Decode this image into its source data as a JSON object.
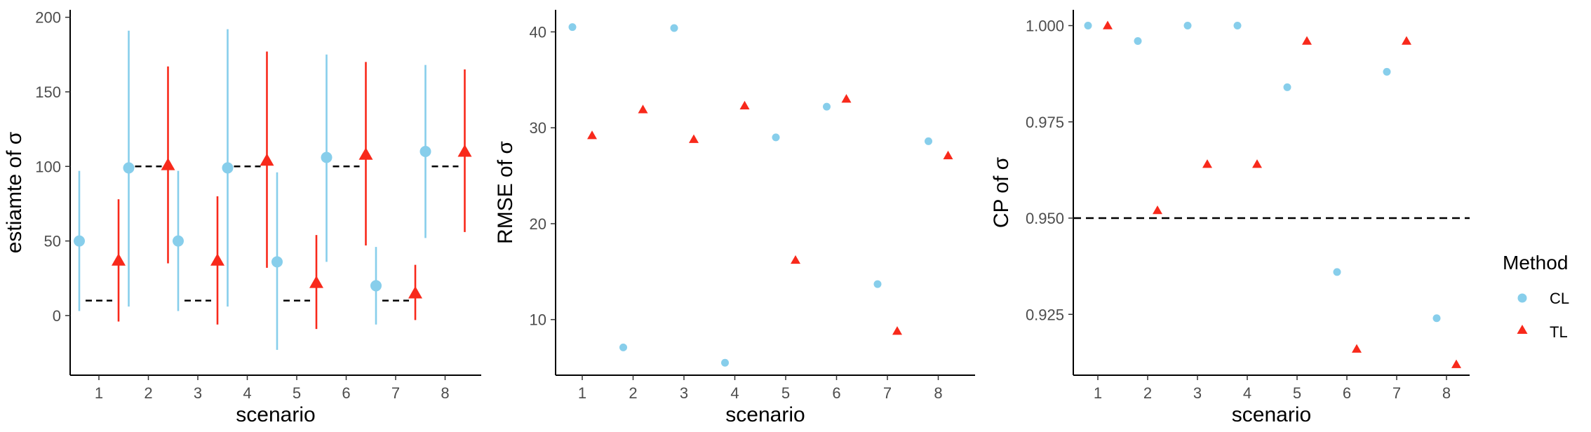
{
  "chart_data": [
    {
      "type": "scatter",
      "variant": "point-range",
      "xlabel": "scenario",
      "ylabel": "estiamte of σ",
      "categories": [
        "1",
        "2",
        "3",
        "4",
        "5",
        "6",
        "7",
        "8"
      ],
      "ylim": [
        -40,
        205
      ],
      "yticks": [
        0,
        50,
        100,
        150,
        200
      ],
      "grid": false,
      "series": [
        {
          "name": "CL",
          "color": "#87CEEB",
          "marker": "circle",
          "values": [
            50,
            99,
            50,
            99,
            36,
            106,
            20,
            110
          ],
          "lower": [
            3,
            6,
            3,
            6,
            -23,
            36,
            -6,
            52
          ],
          "upper": [
            97,
            191,
            97,
            192,
            96,
            175,
            46,
            168
          ]
        },
        {
          "name": "TL",
          "color": "#F8291B",
          "marker": "triangle",
          "values": [
            37,
            101,
            37,
            104,
            22,
            108,
            15,
            110
          ],
          "lower": [
            -4,
            35,
            -6,
            32,
            -9,
            47,
            -3,
            56
          ],
          "upper": [
            78,
            167,
            80,
            177,
            54,
            170,
            34,
            165
          ]
        }
      ],
      "reference": {
        "style": "dashed",
        "color": "#000000",
        "values": [
          10,
          100,
          10,
          100,
          10,
          100,
          10,
          100
        ]
      }
    },
    {
      "type": "scatter",
      "xlabel": "scenario",
      "ylabel": "RMSE of σ",
      "categories": [
        "1",
        "2",
        "3",
        "4",
        "5",
        "6",
        "7",
        "8"
      ],
      "ylim": [
        4.2,
        42.3
      ],
      "yticks": [
        10,
        20,
        30,
        40
      ],
      "grid": false,
      "series": [
        {
          "name": "CL",
          "color": "#87CEEB",
          "marker": "circle",
          "values": [
            40.5,
            7.1,
            40.4,
            5.5,
            29.0,
            32.2,
            13.7,
            28.6
          ]
        },
        {
          "name": "TL",
          "color": "#F8291B",
          "marker": "triangle",
          "values": [
            29.2,
            31.9,
            28.8,
            32.3,
            16.2,
            33.0,
            8.8,
            27.1
          ]
        }
      ]
    },
    {
      "type": "scatter",
      "xlabel": "scenario",
      "ylabel": "CP of σ",
      "categories": [
        "1",
        "2",
        "3",
        "4",
        "5",
        "6",
        "7",
        "8"
      ],
      "ylim": [
        0.9092,
        1.0041
      ],
      "yticks": [
        0.925,
        0.95,
        0.975,
        1.0
      ],
      "ytick_labels": [
        "0.925",
        "0.950",
        "0.975",
        "1.000"
      ],
      "grid": false,
      "series": [
        {
          "name": "CL",
          "color": "#87CEEB",
          "marker": "circle",
          "values": [
            1.0,
            0.996,
            1.0,
            1.0,
            0.984,
            0.936,
            0.988,
            0.924
          ]
        },
        {
          "name": "TL",
          "color": "#F8291B",
          "marker": "triangle",
          "values": [
            1.0,
            0.952,
            0.964,
            0.964,
            0.996,
            0.916,
            0.996,
            0.912
          ]
        }
      ],
      "reference": {
        "style": "dashed",
        "color": "#000000",
        "value": 0.95
      }
    }
  ],
  "legend": {
    "title": "Method",
    "placement": "right",
    "items": [
      {
        "label": "CL",
        "color": "#87CEEB",
        "marker": "circle"
      },
      {
        "label": "TL",
        "color": "#F8291B",
        "marker": "triangle"
      }
    ]
  }
}
